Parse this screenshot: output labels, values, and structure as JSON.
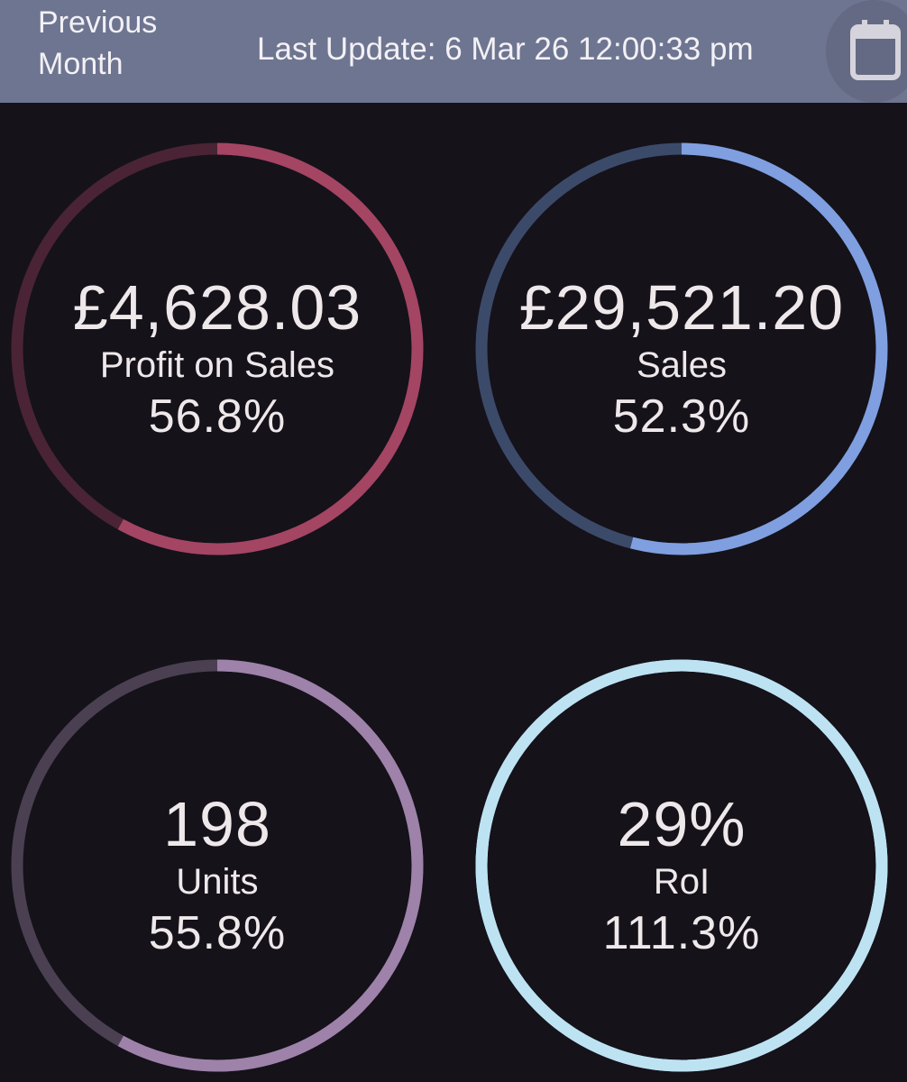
{
  "header": {
    "period_label": "Previous Month",
    "last_update": "Last Update: 6 Mar 26 12:00:33 pm",
    "calendar_icon": "calendar-icon"
  },
  "metrics": [
    {
      "value": "£4,628.03",
      "label": "Profit on Sales",
      "percent": "56.8%",
      "progress": 0.58,
      "color": "#a44563",
      "track": "#4a2434"
    },
    {
      "value": "£29,521.20",
      "label": "Sales",
      "percent": "52.3%",
      "progress": 0.54,
      "color": "#7f9fe0",
      "track": "#3c4a6a"
    },
    {
      "value": "198",
      "label": "Units",
      "percent": "55.8%",
      "progress": 0.58,
      "color": "#9e82aa",
      "track": "#4b4052"
    },
    {
      "value": "29%",
      "label": "RoI",
      "percent": "111.3%",
      "progress": 1.0,
      "color": "#bde3f3",
      "track": "#bde3f3"
    }
  ]
}
